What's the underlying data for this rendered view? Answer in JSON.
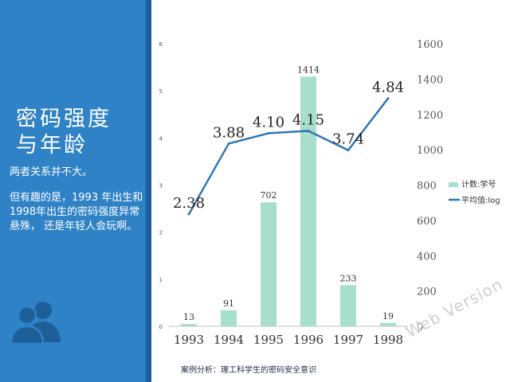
{
  "slide": {
    "title_lines": [
      "密码强度",
      "与年龄"
    ],
    "paragraph_1": "两者关系并不大。",
    "paragraph_2": "但有趣的是，1993 年出生和 1998年出生的密码强度异常悬殊， 还是年轻人会玩啊。",
    "caption": "案例分析：理工科学生的密码安全意识",
    "watermark": "Web Version",
    "people_icon": "people-group-icon"
  },
  "colors": {
    "panel": "#2f82c6",
    "panel_stripe": "#1d5f99",
    "bar": "#a8dfcc",
    "line": "#2e75b6"
  },
  "chart_data": {
    "type": "bar",
    "categories": [
      "1993",
      "1994",
      "1995",
      "1996",
      "1997",
      "1998"
    ],
    "series": [
      {
        "name": "计数:学号",
        "type": "bar",
        "axis": "right",
        "values": [
          13,
          91,
          702,
          1414,
          233,
          19
        ],
        "labels": [
          "13",
          "91",
          "702",
          "1414",
          "233",
          "19"
        ]
      },
      {
        "name": "平均值:log",
        "type": "line",
        "axis": "left",
        "values": [
          2.38,
          3.88,
          4.1,
          4.15,
          3.74,
          4.84
        ],
        "labels": [
          "2.38",
          "3.88",
          "4.10",
          "4.15",
          "3.74",
          "4.84"
        ]
      }
    ],
    "y_left": {
      "ylim": [
        0,
        6
      ],
      "ticks": [
        "0",
        "1",
        "2",
        "3",
        "4",
        "5",
        "6"
      ]
    },
    "y_right": {
      "ylim": [
        0,
        1600
      ],
      "ticks": [
        "0",
        "200",
        "400",
        "600",
        "800",
        "1000",
        "1200",
        "1400",
        "1600"
      ]
    },
    "legend_position": "right",
    "grid": false
  }
}
